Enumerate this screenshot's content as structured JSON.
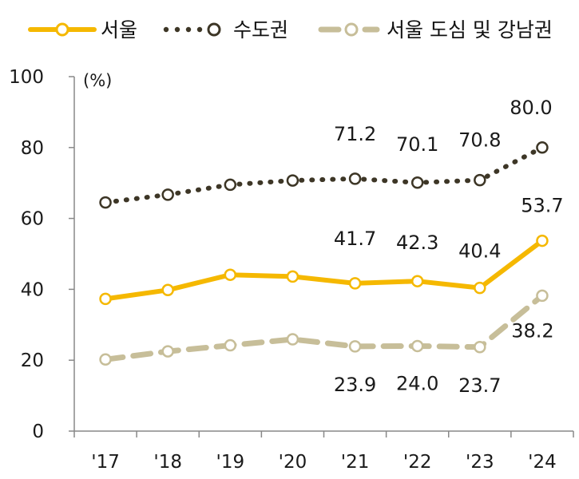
{
  "chart_data": {
    "type": "line",
    "categories": [
      "'17",
      "'18",
      "'19",
      "'20",
      "'21",
      "'22",
      "'23",
      "'24"
    ],
    "unit_label": "(%)",
    "ylim": [
      0,
      100
    ],
    "yticks": [
      0,
      20,
      40,
      60,
      80,
      100
    ],
    "grid": false,
    "legend_position": "top",
    "series": [
      {
        "name": "서울",
        "values": [
          37.3,
          39.8,
          44.1,
          43.6,
          41.7,
          42.3,
          40.4,
          53.7
        ],
        "color": "#F5B800",
        "style": "solid",
        "labels": [
          null,
          null,
          null,
          null,
          "41.7",
          "42.3",
          "40.4",
          "53.7"
        ]
      },
      {
        "name": "수도권",
        "values": [
          64.5,
          66.7,
          69.5,
          70.7,
          71.2,
          70.1,
          70.8,
          80.0
        ],
        "color": "#3D3626",
        "style": "dotted",
        "labels": [
          null,
          null,
          null,
          null,
          "71.2",
          "70.1",
          "70.8",
          "80.0"
        ]
      },
      {
        "name": "서울 도심 및 강남권",
        "values": [
          20.2,
          22.5,
          24.2,
          25.9,
          23.9,
          24.0,
          23.7,
          38.2
        ],
        "color": "#C7BE99",
        "style": "dashed",
        "labels": [
          null,
          null,
          null,
          null,
          "23.9",
          "24.0",
          "23.7",
          "38.2"
        ]
      }
    ]
  }
}
